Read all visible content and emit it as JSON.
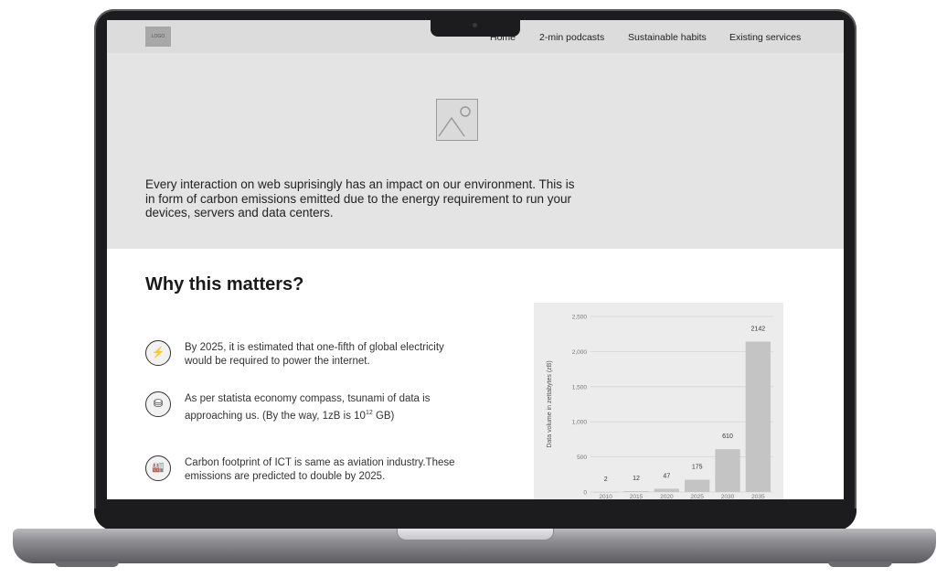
{
  "nav": {
    "logo_text": "LOGO",
    "links": [
      "Home",
      "2-min podcasts",
      "Sustainable habits",
      "Existing services"
    ]
  },
  "hero": {
    "image_icon": "image-placeholder-icon",
    "text": "Every interaction on web suprisingly has an impact on our environment. This is in form of carbon emissions emitted due to the energy requirement to run your devices, servers and data centers."
  },
  "section": {
    "title": "Why this matters?"
  },
  "facts": [
    {
      "icon": "lightning-icon",
      "glyph": "⚡",
      "text": "By 2025, it is estimated that one-fifth of global electricity would be required to power the internet."
    },
    {
      "icon": "database-icon",
      "glyph": "⛁",
      "text": "As per statista economy compass, tsunami of data is approaching us. (By the way, 1zB is 10",
      "sup": "12",
      "text_after": " GB)"
    },
    {
      "icon": "factory-icon",
      "glyph": "🏭",
      "text": "Carbon footprint of ICT is same as aviation industry.These emissions are predicted to double by 2025."
    }
  ],
  "colors": {
    "nav_bg": "#dcdcdc",
    "hero_bg": "#e4e4e4",
    "bar": "#c4c4c4",
    "chart_bg": "#ececec"
  },
  "chart_data": {
    "type": "bar",
    "title": "",
    "xlabel": "",
    "ylabel": "Data volume in zettabytes (zB)",
    "categories": [
      "2010",
      "2015",
      "2020",
      "2025",
      "2030",
      "2035"
    ],
    "values": [
      2,
      12,
      47,
      175,
      610,
      2142
    ],
    "value_labels": [
      "2",
      "12",
      "47",
      "175",
      "610",
      "2142"
    ],
    "yticks": [
      0,
      500,
      1000,
      1500,
      2000,
      2500
    ],
    "ytick_labels": [
      "0",
      "500",
      "1,000",
      "1,500",
      "2,000",
      "2,500"
    ],
    "ylim": [
      0,
      2500
    ],
    "grid": true,
    "legend": "none"
  }
}
